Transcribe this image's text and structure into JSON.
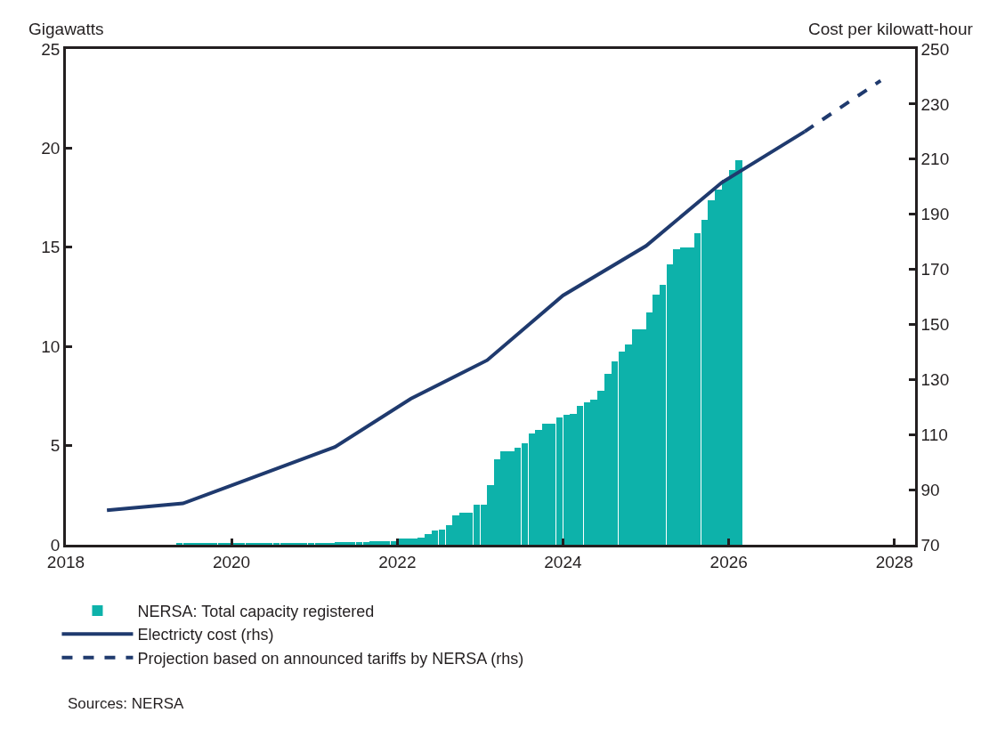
{
  "chart_data": {
    "type": "bar",
    "ylabel": "Gigawatts",
    "y2label": "Cost per kilowatt-hour",
    "xlim": [
      "2018-01-01",
      "2028-04-01"
    ],
    "xticks": [
      "2018",
      "2020",
      "2022",
      "2024",
      "2026",
      "2028"
    ],
    "ylim": [
      0,
      25
    ],
    "yticks": [
      0,
      5,
      10,
      15,
      20,
      25
    ],
    "y2lim": [
      70,
      250
    ],
    "y2ticks": [
      70,
      90,
      110,
      130,
      150,
      170,
      190,
      210,
      230,
      250
    ],
    "legend": "bottom",
    "series": [
      {
        "name": "NERSA: Total capacity registered",
        "color": "#0db2aa",
        "x": [
          "2019-05",
          "2019-06",
          "2019-07",
          "2019-08",
          "2019-09",
          "2019-10",
          "2019-11",
          "2019-12",
          "2020-01",
          "2020-02",
          "2020-03",
          "2020-04",
          "2020-05",
          "2020-06",
          "2020-07",
          "2020-08",
          "2020-09",
          "2020-10",
          "2020-11",
          "2020-12",
          "2021-01",
          "2021-02",
          "2021-03",
          "2021-04",
          "2021-05",
          "2021-06",
          "2021-07",
          "2021-08",
          "2021-09",
          "2021-10",
          "2021-11",
          "2021-12",
          "2022-01",
          "2022-02",
          "2022-03",
          "2022-04",
          "2022-05",
          "2022-06",
          "2022-07",
          "2022-08",
          "2022-09",
          "2022-10",
          "2022-11",
          "2022-12",
          "2023-01",
          "2023-02",
          "2023-03",
          "2023-04",
          "2023-05",
          "2023-06",
          "2023-07",
          "2023-08",
          "2023-09",
          "2023-10",
          "2023-11",
          "2023-12",
          "2024-01",
          "2024-02",
          "2024-03",
          "2024-04",
          "2024-05",
          "2024-06",
          "2024-07",
          "2024-08",
          "2024-09",
          "2024-10",
          "2024-11",
          "2024-12",
          "2025-01",
          "2025-02",
          "2025-03",
          "2025-04",
          "2025-05",
          "2025-06",
          "2025-07",
          "2025-08",
          "2025-09",
          "2025-10",
          "2025-11",
          "2025-12",
          "2026-01",
          "2026-02"
        ],
        "values": [
          0.1,
          0.1,
          0.1,
          0.1,
          0.1,
          0.1,
          0.1,
          0.1,
          0.1,
          0.1,
          0.1,
          0.1,
          0.1,
          0.1,
          0.1,
          0.1,
          0.1,
          0.1,
          0.1,
          0.1,
          0.1,
          0.1,
          0.1,
          0.15,
          0.15,
          0.15,
          0.15,
          0.15,
          0.2,
          0.2,
          0.2,
          0.2,
          0.3,
          0.3,
          0.3,
          0.35,
          0.55,
          0.7,
          0.75,
          1.0,
          1.5,
          1.6,
          1.6,
          2.0,
          2.0,
          3.0,
          4.3,
          4.7,
          4.7,
          4.9,
          5.1,
          5.6,
          5.8,
          6.1,
          6.1,
          6.4,
          6.55,
          6.6,
          7.0,
          7.2,
          7.3,
          7.75,
          8.6,
          9.25,
          9.75,
          10.1,
          10.85,
          10.85,
          11.7,
          12.6,
          13.1,
          14.15,
          14.9,
          15.0,
          15.0,
          15.7,
          16.4,
          17.35,
          17.9,
          18.4,
          18.9,
          19.4
        ]
      },
      {
        "name": "Electricty cost (rhs)",
        "type": "line",
        "axis": "y2",
        "color": "#1f3a6e",
        "line_style": "solid",
        "x": [
          "2018-07",
          "2019-06",
          "2021-04",
          "2022-03",
          "2023-02",
          "2024-01",
          "2025-01",
          "2025-12",
          "2026-12"
        ],
        "values": [
          82.5,
          85,
          105.5,
          123,
          137,
          160.5,
          178.5,
          201.5,
          220
        ]
      },
      {
        "name": "Projection based on announced tariffs by NERSA (rhs)",
        "type": "line",
        "axis": "y2",
        "color": "#1f3a6e",
        "line_style": "dashed",
        "x": [
          "2026-12",
          "2027-11"
        ],
        "values": [
          220,
          238.5
        ]
      }
    ],
    "annotations": [
      "Sources: NERSA"
    ]
  }
}
